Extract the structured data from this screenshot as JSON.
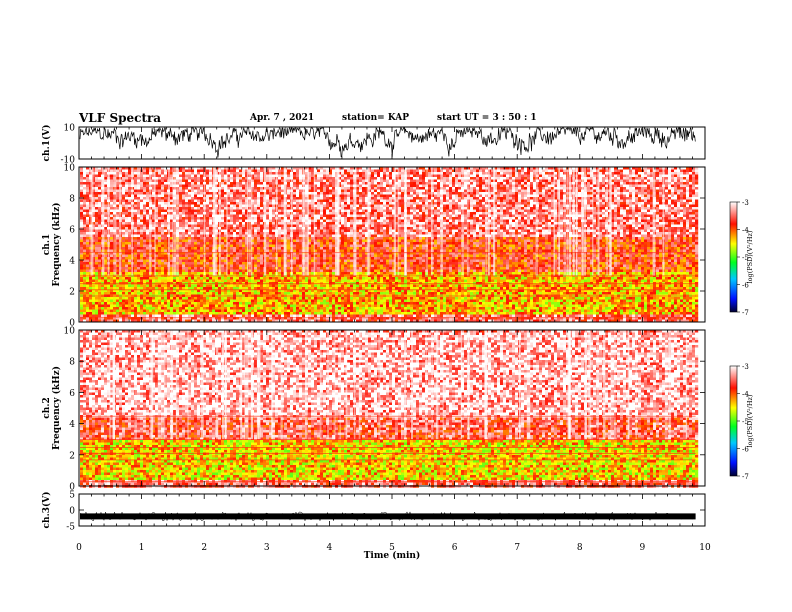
{
  "header": {
    "title": "VLF Spectra",
    "date": "Apr. 7  , 2021",
    "station": "station= KAP",
    "start": "start  UT  =   3  : 50 : 1"
  },
  "chart_data": [
    {
      "type": "line",
      "panel": "ch1-waveform",
      "ylabel": "ch.1(V)",
      "ylim": [
        -10,
        10
      ],
      "yticks": [
        "10",
        "-10"
      ],
      "xlim": [
        0,
        10
      ],
      "series": [
        {
          "values": "noisy waveform, amplitude roughly -10 to 10 V, mean slightly above 0"
        }
      ]
    },
    {
      "type": "heatmap",
      "panel": "ch1-spectrogram",
      "ylabel": "ch.1 Frequency (kHz)",
      "ylim": [
        0,
        10
      ],
      "yticks": [
        "0",
        "2",
        "4",
        "6",
        "8",
        "10"
      ],
      "xlim": [
        0,
        9.85
      ],
      "colorbar": {
        "label": "log(PSD)(V²/Hz)",
        "range": [
          -7,
          -3
        ],
        "ticks": [
          "-3",
          "-4",
          "-5",
          "-6",
          "-7"
        ]
      },
      "bands": [
        {
          "from_khz": 0,
          "to_khz": 0.6,
          "level": -3.5
        },
        {
          "from_khz": 0.6,
          "to_khz": 3.3,
          "level": -4.3
        },
        {
          "from_khz": 3.3,
          "to_khz": 5.5,
          "level": -3.8
        },
        {
          "from_khz": 5.5,
          "to_khz": 10,
          "level": -3.4
        }
      ]
    },
    {
      "type": "heatmap",
      "panel": "ch2-spectrogram",
      "ylabel": "ch.2 Frequency (kHz)",
      "ylim": [
        0,
        10
      ],
      "yticks": [
        "0",
        "2",
        "4",
        "6",
        "8",
        "10"
      ],
      "xlim": [
        0,
        9.85
      ],
      "colorbar": {
        "label": "log(PSD)(V²/Hz)",
        "range": [
          -7,
          -3
        ],
        "ticks": [
          "-3",
          "-4",
          "-5",
          "-6",
          "-7"
        ]
      },
      "bands": [
        {
          "from_khz": 0,
          "to_khz": 0.5,
          "level": -3.5
        },
        {
          "from_khz": 0.5,
          "to_khz": 3.0,
          "level": -4.4
        },
        {
          "from_khz": 3.0,
          "to_khz": 4.5,
          "level": -3.6
        },
        {
          "from_khz": 4.5,
          "to_khz": 10,
          "level": -3.2
        }
      ]
    },
    {
      "type": "line",
      "panel": "ch3-waveform",
      "ylabel": "ch.3(V)",
      "ylim": [
        -5,
        5
      ],
      "yticks": [
        "5",
        "0",
        "-5"
      ],
      "xlim": [
        0,
        10
      ],
      "series": [
        {
          "values": "near-constant dense trace around -2 V"
        }
      ]
    }
  ],
  "xaxis": {
    "label": "Time  (min)",
    "ticks": [
      "0",
      "1",
      "2",
      "3",
      "4",
      "5",
      "6",
      "7",
      "8",
      "9",
      "10"
    ],
    "range": [
      0,
      10
    ]
  }
}
